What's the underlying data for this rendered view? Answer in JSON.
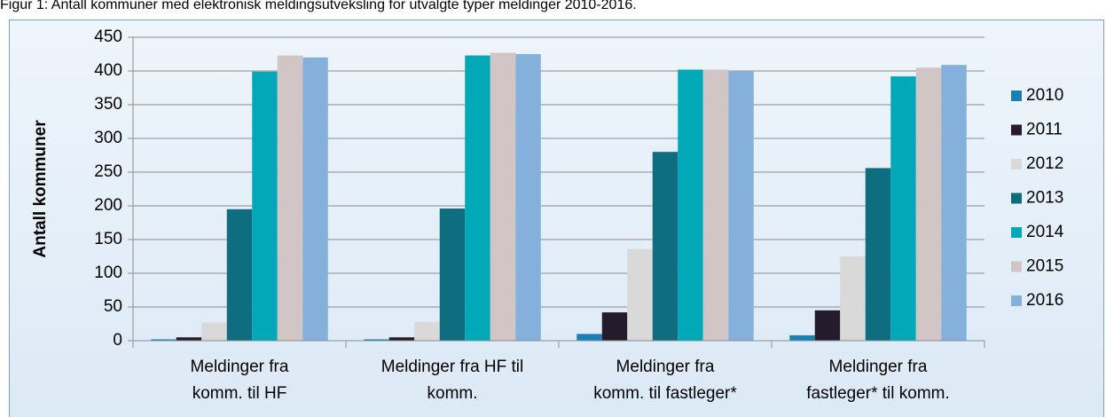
{
  "chart_data": {
    "type": "bar",
    "title": "Figur 1: Antall kommuner med elektronisk meldingsutveksling for utvalgte typer meldinger 2010-2016.",
    "ylabel": "Antall kommuner",
    "categories": [
      [
        "Meldinger fra",
        "komm. til HF"
      ],
      [
        "Meldinger fra HF til",
        "komm."
      ],
      [
        "Meldinger fra",
        "komm. til fastleger*"
      ],
      [
        "Meldinger fra",
        "fastleger* til komm."
      ]
    ],
    "series": [
      {
        "name": "2010",
        "color": "#1a7fb5",
        "values": [
          2,
          2,
          10,
          8
        ]
      },
      {
        "name": "2011",
        "color": "#241b2b",
        "values": [
          5,
          5,
          42,
          45
        ]
      },
      {
        "name": "2012",
        "color": "#d9d9d9",
        "values": [
          27,
          28,
          136,
          125
        ]
      },
      {
        "name": "2013",
        "color": "#0e6e80",
        "values": [
          195,
          196,
          280,
          256
        ]
      },
      {
        "name": "2014",
        "color": "#00a8b8",
        "values": [
          399,
          423,
          402,
          392
        ]
      },
      {
        "name": "2015",
        "color": "#d2c5c5",
        "values": [
          423,
          427,
          402,
          405
        ]
      },
      {
        "name": "2016",
        "color": "#85b0dc",
        "values": [
          420,
          425,
          400,
          409
        ]
      }
    ],
    "ylim": [
      0,
      450
    ],
    "yticks": [
      0,
      50,
      100,
      150,
      200,
      250,
      300,
      350,
      400,
      450
    ],
    "grid": true,
    "legend": "right"
  }
}
